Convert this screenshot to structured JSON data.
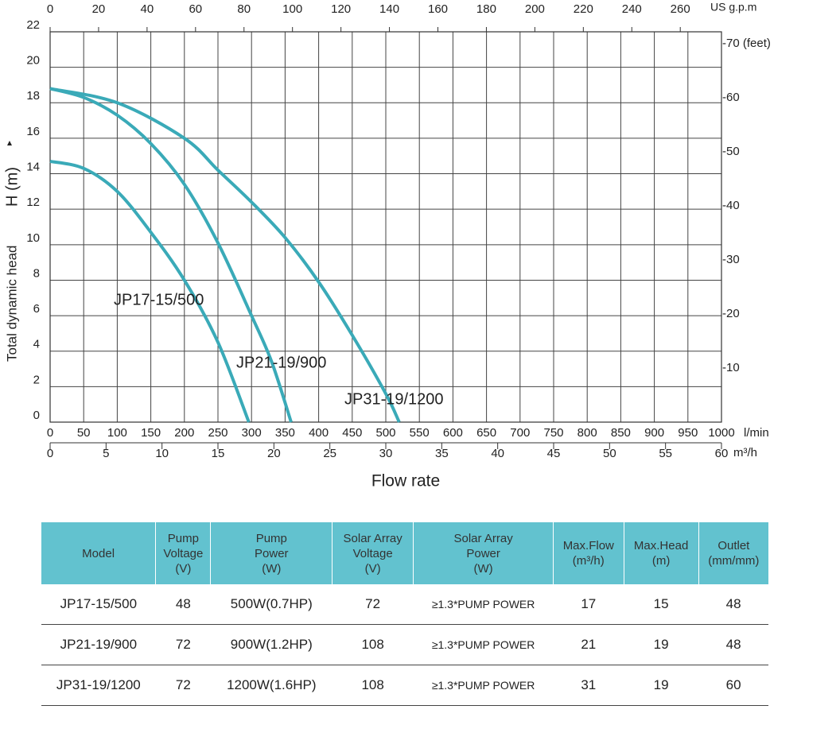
{
  "chart_data": {
    "type": "line",
    "xlabel": "Flow rate",
    "xunit": "l/min",
    "xlim": [
      0,
      1000
    ],
    "xticks": [
      0,
      50,
      100,
      150,
      200,
      250,
      300,
      350,
      400,
      450,
      500,
      550,
      600,
      650,
      700,
      750,
      800,
      850,
      900,
      950,
      1000
    ],
    "x2unit": "m³/h",
    "x2lim": [
      0,
      60
    ],
    "x2ticks": [
      0,
      5,
      10,
      15,
      20,
      25,
      30,
      35,
      40,
      45,
      50,
      55,
      60
    ],
    "x3unit": "US g.p.m",
    "x3lim": [
      0,
      277
    ],
    "x3ticks": [
      0,
      20,
      40,
      60,
      80,
      100,
      120,
      140,
      160,
      180,
      200,
      220,
      240,
      260
    ],
    "ylabel": "Total dynamic head",
    "ysymbol": "H (m)",
    "ylim": [
      0,
      22
    ],
    "yticks": [
      0,
      2,
      4,
      6,
      8,
      10,
      12,
      14,
      16,
      18,
      20,
      22
    ],
    "y2lim": [
      0,
      72.18
    ],
    "y2ticks": [
      {
        "value": 10,
        "label": "-10"
      },
      {
        "value": 20,
        "label": "-20"
      },
      {
        "value": 30,
        "label": "-30"
      },
      {
        "value": 40,
        "label": "-40"
      },
      {
        "value": 50,
        "label": "-50"
      },
      {
        "value": 60,
        "label": "-60"
      },
      {
        "value": 70,
        "label": "-70 (feet)"
      }
    ],
    "grid": true,
    "series": [
      {
        "name": "JP17-15/500",
        "color": "#3aaab8",
        "x": [
          0,
          50,
          100,
          150,
          200,
          250,
          296
        ],
        "values": [
          14.7,
          14.3,
          13,
          10.7,
          8,
          4.5,
          0
        ]
      },
      {
        "name": "JP21-19/900",
        "color": "#3aaab8",
        "x": [
          0,
          50,
          100,
          150,
          200,
          250,
          300,
          330,
          359
        ],
        "values": [
          18.8,
          18.3,
          17.3,
          15.7,
          13.4,
          10.1,
          6,
          3.4,
          0
        ]
      },
      {
        "name": "JP31-19/1200",
        "color": "#3aaab8",
        "x": [
          0,
          100,
          200,
          250,
          300,
          350,
          400,
          450,
          500,
          520
        ],
        "values": [
          18.8,
          18,
          16,
          14.2,
          12.4,
          10.4,
          7.9,
          4.9,
          1.6,
          0
        ]
      }
    ]
  },
  "table": {
    "headers": [
      [
        "Model"
      ],
      [
        "Pump",
        "Voltage",
        "(V)"
      ],
      [
        "Pump",
        "Power",
        "(W)"
      ],
      [
        "Solar Array",
        "Voltage",
        "(V)"
      ],
      [
        "Solar Array",
        "Power",
        "(W)"
      ],
      [
        "Max.Flow",
        "(m³/h)"
      ],
      [
        "Max.Head",
        "(m)"
      ],
      [
        "Outlet",
        "(mm/mm)"
      ]
    ],
    "rows": [
      [
        "JP17-15/500",
        48,
        "500W(0.7HP)",
        72,
        "≥1.3*PUMP POWER",
        17,
        15,
        48
      ],
      [
        "JP21-19/900",
        72,
        "900W(1.2HP)",
        108,
        "≥1.3*PUMP POWER",
        21,
        19,
        48
      ],
      [
        "JP31-19/1200",
        72,
        "1200W(1.6HP)",
        108,
        "≥1.3*PUMP POWER",
        31,
        19,
        60
      ]
    ]
  }
}
